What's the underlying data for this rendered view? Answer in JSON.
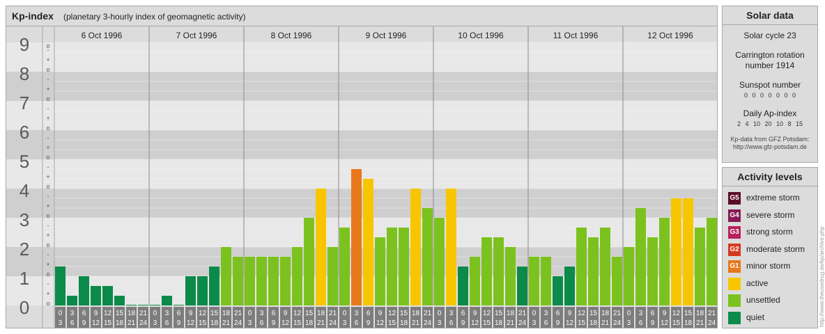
{
  "header": {
    "title": "Kp-index",
    "subtitle": "(planetary 3-hourly index of geomagnetic activity)"
  },
  "chart_data": {
    "type": "bar",
    "title": "Kp-index",
    "subtitle": "(planetary 3-hourly index of geomagnetic activity)",
    "ylim": [
      0,
      9
    ],
    "y_ticks": [
      "0",
      "1",
      "2",
      "3",
      "4",
      "5",
      "6",
      "7",
      "8",
      "9"
    ],
    "sub_ticks": [
      "o",
      "+",
      "-"
    ],
    "days": [
      "6 Oct 1996",
      "7 Oct 1996",
      "8 Oct 1996",
      "9 Oct 1996",
      "10 Oct 1996",
      "11 Oct 1996",
      "12 Oct 1996"
    ],
    "interval_start": [
      "0",
      "3",
      "6",
      "9",
      "12",
      "15",
      "18",
      "21"
    ],
    "interval_end": [
      "3",
      "6",
      "9",
      "12",
      "15",
      "18",
      "21",
      "24"
    ],
    "values": [
      1.333,
      0.333,
      1.0,
      0.667,
      0.667,
      0.333,
      0,
      0,
      0,
      0.333,
      0,
      1.0,
      1.0,
      1.333,
      2.0,
      1.667,
      1.667,
      1.667,
      1.667,
      1.667,
      2.0,
      3.0,
      4.0,
      2.0,
      2.667,
      4.667,
      4.333,
      2.333,
      2.667,
      2.667,
      4.0,
      3.333,
      3.0,
      4.0,
      1.333,
      1.667,
      2.333,
      2.333,
      2.0,
      1.333,
      1.667,
      1.667,
      1.0,
      1.333,
      2.667,
      2.333,
      2.667,
      1.667,
      2.0,
      3.333,
      2.333,
      3.0,
      3.667,
      3.667,
      2.667,
      3.0
    ],
    "colors": {
      "quiet": "#0b8a4a",
      "unsettled": "#7cc21e",
      "active": "#f7c600",
      "G1": "#e8781b",
      "G2": "#d53a1f",
      "G3": "#b8225c",
      "G4": "#861a56",
      "G5": "#5b0d2a"
    },
    "grid": true
  },
  "solar": {
    "title": "Solar data",
    "cycle": "Solar cycle 23",
    "carrington": "Carrington rotation number 1914",
    "sunspot_label": "Sunspot number",
    "sunspot_values": "0 0 0 0 0 0 0",
    "ap_label": "Daily Ap-index",
    "ap_values": "2 4 10 20 10 8 15",
    "source_line1": "Kp-data from GFZ Potsdam:",
    "source_line2": "http://www.gfz-potsdam.de"
  },
  "legend": {
    "title": "Activity levels",
    "items": [
      {
        "code": "G5",
        "label": "extreme storm",
        "color": "#5b0d2a"
      },
      {
        "code": "G4",
        "label": "severe storm",
        "color": "#861a56"
      },
      {
        "code": "G3",
        "label": "strong storm",
        "color": "#b8225c"
      },
      {
        "code": "G2",
        "label": "moderate storm",
        "color": "#d53a1f"
      },
      {
        "code": "G1",
        "label": "minor storm",
        "color": "#e8781b"
      },
      {
        "code": "",
        "label": "active",
        "color": "#f7c600"
      },
      {
        "code": "",
        "label": "unsettled",
        "color": "#7cc21e"
      },
      {
        "code": "",
        "label": "quiet",
        "color": "#0b8a4a"
      }
    ]
  },
  "credit": "http://www.theusedrug.de/kp/archive.php"
}
